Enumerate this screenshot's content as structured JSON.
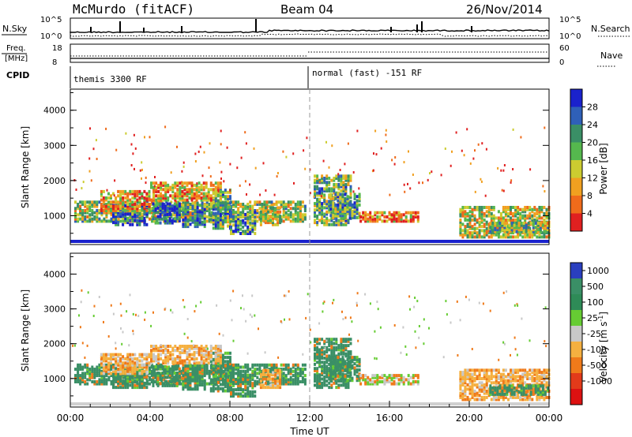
{
  "header": {
    "station": "McMurdo (fitACF)",
    "beam": "Beam 04",
    "date": "26/Nov/2014"
  },
  "status_panels": {
    "nsky_label": "N.Sky",
    "nsky_ticks": [
      "10^5",
      "10^0"
    ],
    "nsearch_label": "N.Search",
    "nsearch_ticks": [
      "10^5",
      "10^0"
    ],
    "freq_label_top": "Freq.",
    "freq_label_unit": "[MHz]",
    "freq_ticks": [
      "18",
      "8"
    ],
    "nave_label": "Nave",
    "nave_ticks": [
      "60",
      "0"
    ],
    "cpid_label": "CPID",
    "cpid_modes": [
      {
        "text": "themis 3300 RF",
        "start_hour": 0
      },
      {
        "text": "normal (fast) -151 RF",
        "start_hour": 12
      }
    ]
  },
  "chart_data": [
    {
      "type": "heatmap",
      "name": "power",
      "ylabel": "Slant Range [km]",
      "ylim": [
        180,
        4600
      ],
      "yticks": [
        "1000",
        "2000",
        "3000",
        "4000"
      ],
      "xlim_hours": [
        0,
        24
      ],
      "colorbar_label": "Power [dB]",
      "colorbar_ticks": [
        "4",
        "8",
        "12",
        "16",
        "20",
        "24",
        "28"
      ],
      "colorbar_colors": [
        "#1a22cc",
        "#2f60b8",
        "#3a8f66",
        "#55b84e",
        "#cccc30",
        "#f0a020",
        "#ef6b1b",
        "#e02020"
      ],
      "mode_change_hour": 12
    },
    {
      "type": "heatmap",
      "name": "velocity",
      "ylabel": "Slant Range [km]",
      "ylim": [
        180,
        4600
      ],
      "yticks": [
        "1000",
        "2000",
        "3000",
        "4000"
      ],
      "xlim_hours": [
        0,
        24
      ],
      "xticks": [
        "00:00",
        "04:00",
        "08:00",
        "12:00",
        "16:00",
        "20:00",
        "00:00"
      ],
      "xlabel": "Time UT",
      "colorbar_label": "Velocity [m s",
      "colorbar_label_sup": "-1",
      "colorbar_ticks": [
        "1000",
        "500",
        "100",
        "25",
        "-25",
        "-100",
        "-500",
        "-1000"
      ],
      "colorbar_colors": [
        "#2a3fbf",
        "#3a8f66",
        "#2e8b57",
        "#66cc33",
        "#c8c8c8",
        "#f5b040",
        "#ef7a1a",
        "#e23a1a",
        "#dd1111"
      ],
      "mode_change_hour": 12
    }
  ]
}
